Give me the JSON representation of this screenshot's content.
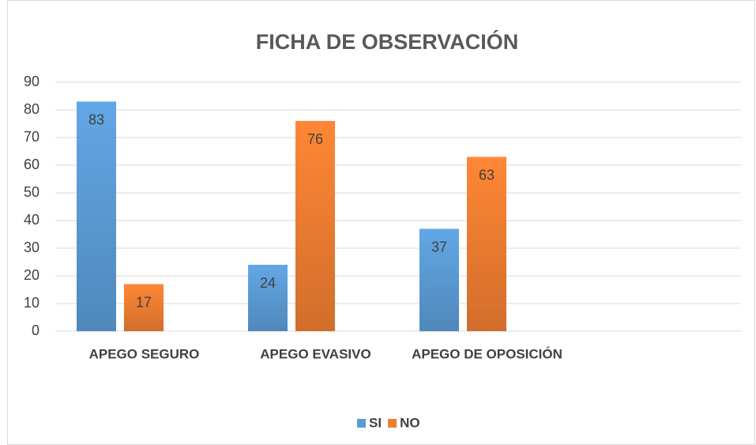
{
  "chart_data": {
    "type": "bar",
    "title": "FICHA DE OBSERVACIÓN",
    "categories": [
      "APEGO SEGURO",
      "APEGO EVASIVO",
      "APEGO DE OPOSICIÓN",
      null
    ],
    "series": [
      {
        "name": "SI",
        "color": "#5b9bd5",
        "values": [
          83,
          24,
          37,
          null
        ]
      },
      {
        "name": "NO",
        "color": "#ed7d31",
        "values": [
          17,
          76,
          63,
          null
        ]
      }
    ],
    "ylim": [
      0,
      90
    ],
    "yticks": [
      0,
      10,
      20,
      30,
      40,
      50,
      60,
      70,
      80,
      90
    ],
    "grid": true,
    "legend": "bottom"
  }
}
